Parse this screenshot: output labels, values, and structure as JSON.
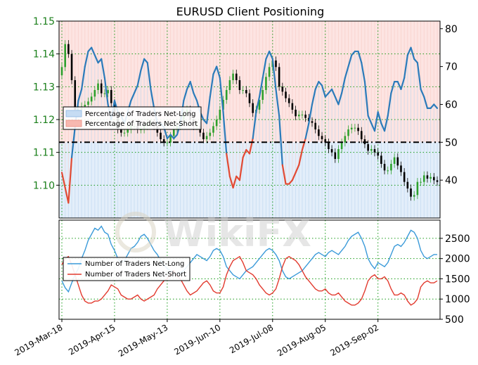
{
  "chart_data": [
    {
      "panel": "top",
      "type": "line",
      "title": "EURUSD Client Positioning",
      "x_tick_labels": [
        "2019-Mar-18",
        "2019-Apr-15",
        "2019-May-13",
        "2019-Jun-10",
        "2019-Jul-08",
        "2019-Aug-05",
        "2019-Sep-02"
      ],
      "left_axis": {
        "ylim": [
          1.09,
          1.15
        ],
        "tick_labels": [
          "1.10",
          "1.11",
          "1.12",
          "1.13",
          "1.14",
          "1.15"
        ],
        "color": "#1a7f1a"
      },
      "right_axis": {
        "ylim": [
          30,
          82
        ],
        "tick_labels": [
          "40",
          "50",
          "60",
          "70",
          "80"
        ],
        "neutral_level": 50
      },
      "legend": {
        "placement": "center-left",
        "entries": [
          "Percentage of Traders Net-Long",
          "Percentage of Traders Net-Short"
        ]
      },
      "grid": true,
      "series_colors": {
        "net_long": "#2b7bba",
        "net_short": "#e24a33",
        "candle_up": "#2ca02c",
        "candle_down": "#000000"
      },
      "net_long_pct": [
        42,
        38,
        34,
        46,
        54,
        61,
        64,
        70,
        74,
        75,
        73,
        71,
        72,
        67,
        60,
        56,
        61,
        58,
        57,
        55,
        58,
        61,
        63,
        65,
        69,
        72,
        71,
        64,
        59,
        55,
        55,
        54,
        51,
        52,
        51,
        52,
        55,
        61,
        64,
        66,
        63,
        61,
        58,
        56,
        55,
        62,
        68,
        70,
        67,
        58,
        47,
        41,
        38,
        41,
        40,
        46,
        48,
        47,
        51,
        58,
        62,
        67,
        72,
        74,
        72,
        64,
        57,
        44,
        39,
        39,
        40,
        42,
        44,
        48,
        51,
        55,
        60,
        64,
        66,
        65,
        62,
        63,
        64,
        62,
        60,
        63,
        67,
        70,
        73,
        74,
        74,
        71,
        66,
        57,
        55,
        53,
        58,
        55,
        53,
        57,
        63,
        66,
        66,
        64,
        67,
        73,
        75,
        72,
        71,
        64,
        62,
        59,
        59,
        60,
        59
      ],
      "price": {
        "open": [
          1.1335,
          1.136,
          1.143,
          1.14,
          1.132,
          1.123,
          1.123,
          1.124,
          1.1245,
          1.1255,
          1.127,
          1.129,
          1.131,
          1.128,
          1.128,
          1.129,
          1.125,
          1.122,
          1.117,
          1.116,
          1.116,
          1.117,
          1.118,
          1.118,
          1.117,
          1.117,
          1.118,
          1.119,
          1.119,
          1.118,
          1.116,
          1.114,
          1.113,
          1.113,
          1.115,
          1.117,
          1.118,
          1.12,
          1.122,
          1.123,
          1.12,
          1.118,
          1.118,
          1.116,
          1.114,
          1.115,
          1.116,
          1.118,
          1.12,
          1.123,
          1.126,
          1.129,
          1.132,
          1.134,
          1.132,
          1.129,
          1.129,
          1.128,
          1.125,
          1.122,
          1.123,
          1.126,
          1.129,
          1.133,
          1.136,
          1.138,
          1.136,
          1.13,
          1.1285,
          1.1265,
          1.125,
          1.123,
          1.121,
          1.1215,
          1.1215,
          1.1205,
          1.1195,
          1.119,
          1.117,
          1.115,
          1.114,
          1.113,
          1.111,
          1.11,
          1.108,
          1.111,
          1.113,
          1.115,
          1.117,
          1.1175,
          1.1175,
          1.1165,
          1.114,
          1.1125,
          1.1105,
          1.111,
          1.11,
          1.109,
          1.1065,
          1.1045,
          1.1045,
          1.1065,
          1.1085,
          1.106,
          1.104,
          1.101,
          1.099,
          1.0965,
          1.097,
          1.101,
          1.101,
          1.103,
          1.102,
          1.1025,
          1.1015
        ],
        "close": [
          1.136,
          1.143,
          1.14,
          1.132,
          1.123,
          1.123,
          1.124,
          1.1245,
          1.1255,
          1.127,
          1.129,
          1.131,
          1.128,
          1.128,
          1.129,
          1.125,
          1.122,
          1.117,
          1.116,
          1.116,
          1.117,
          1.118,
          1.118,
          1.117,
          1.117,
          1.118,
          1.119,
          1.119,
          1.118,
          1.116,
          1.114,
          1.113,
          1.113,
          1.115,
          1.117,
          1.118,
          1.12,
          1.122,
          1.123,
          1.12,
          1.118,
          1.118,
          1.116,
          1.114,
          1.115,
          1.116,
          1.118,
          1.12,
          1.123,
          1.126,
          1.129,
          1.132,
          1.134,
          1.132,
          1.129,
          1.129,
          1.128,
          1.125,
          1.122,
          1.123,
          1.126,
          1.129,
          1.133,
          1.136,
          1.138,
          1.136,
          1.13,
          1.1285,
          1.1265,
          1.125,
          1.123,
          1.121,
          1.1215,
          1.1215,
          1.1205,
          1.1195,
          1.119,
          1.117,
          1.115,
          1.114,
          1.113,
          1.111,
          1.11,
          1.108,
          1.111,
          1.113,
          1.115,
          1.117,
          1.1175,
          1.1175,
          1.1165,
          1.114,
          1.1125,
          1.1105,
          1.111,
          1.11,
          1.109,
          1.1065,
          1.1045,
          1.1045,
          1.1065,
          1.1085,
          1.106,
          1.104,
          1.101,
          1.099,
          1.0965,
          1.097,
          1.101,
          1.101,
          1.103,
          1.102,
          1.1025,
          1.1015,
          1.101
        ]
      }
    },
    {
      "panel": "bottom",
      "type": "line",
      "left_axis": {
        "tick_labels": []
      },
      "right_axis": {
        "ylim": [
          500,
          2950
        ],
        "tick_labels": [
          "500",
          "1000",
          "1500",
          "2000",
          "2500"
        ]
      },
      "legend": {
        "placement": "center-left",
        "entries": [
          "Number of Traders Net-Long",
          "Number of Traders Net-Short"
        ]
      },
      "grid": true,
      "series_colors": {
        "net_long": "#3a9ad9",
        "net_short": "#e23a2e"
      },
      "net_long": [
        1450,
        1280,
        1180,
        1400,
        1600,
        1750,
        2000,
        2200,
        2450,
        2600,
        2750,
        2700,
        2800,
        2650,
        2600,
        2350,
        2200,
        2000,
        1900,
        1950,
        2100,
        2250,
        2300,
        2400,
        2550,
        2600,
        2500,
        2350,
        2200,
        2100,
        1950,
        1850,
        1750,
        1700,
        1650,
        1600,
        1650,
        1700,
        1800,
        1900,
        2000,
        2100,
        2050,
        2000,
        1950,
        2050,
        2200,
        2250,
        2200,
        2050,
        1800,
        1700,
        1600,
        1550,
        1500,
        1600,
        1700,
        1750,
        1800,
        1900,
        2000,
        2100,
        2200,
        2250,
        2200,
        2100,
        1950,
        1700,
        1550,
        1500,
        1550,
        1600,
        1650,
        1700,
        1800,
        1900,
        2000,
        2100,
        2150,
        2100,
        2050,
        2150,
        2200,
        2150,
        2100,
        2200,
        2300,
        2450,
        2550,
        2600,
        2650,
        2500,
        2300,
        2000,
        1850,
        1750,
        1900,
        1850,
        1800,
        1900,
        2100,
        2300,
        2350,
        2300,
        2400,
        2550,
        2700,
        2650,
        2500,
        2200,
        2050,
        2000,
        2050,
        2100,
        2100
      ],
      "net_short": [
        1850,
        2000,
        2050,
        1850,
        1600,
        1350,
        1100,
        950,
        900,
        900,
        950,
        950,
        1000,
        1100,
        1200,
        1350,
        1300,
        1250,
        1100,
        1050,
        1000,
        1000,
        1050,
        1100,
        1000,
        950,
        1000,
        1050,
        1100,
        1250,
        1350,
        1450,
        1500,
        1600,
        1700,
        1550,
        1500,
        1350,
        1200,
        1100,
        1150,
        1200,
        1300,
        1400,
        1450,
        1350,
        1200,
        1150,
        1150,
        1300,
        1600,
        1800,
        1950,
        2000,
        2050,
        1900,
        1700,
        1650,
        1600,
        1500,
        1350,
        1250,
        1150,
        1100,
        1150,
        1250,
        1500,
        1800,
        2000,
        2050,
        2000,
        1950,
        1850,
        1700,
        1550,
        1450,
        1350,
        1250,
        1200,
        1200,
        1250,
        1150,
        1100,
        1100,
        1150,
        1050,
        950,
        900,
        850,
        850,
        900,
        1000,
        1200,
        1450,
        1550,
        1600,
        1500,
        1500,
        1550,
        1450,
        1250,
        1100,
        1100,
        1150,
        1100,
        950,
        850,
        900,
        1000,
        1300,
        1400,
        1450,
        1400,
        1400,
        1450
      ]
    }
  ],
  "colors": {
    "short_band": "#fde4e2",
    "long_band": "#e3eefa",
    "grid": "#1a9c1a",
    "watermark": "#cfcfcf"
  },
  "watermark": {
    "text": "WikiFX"
  }
}
